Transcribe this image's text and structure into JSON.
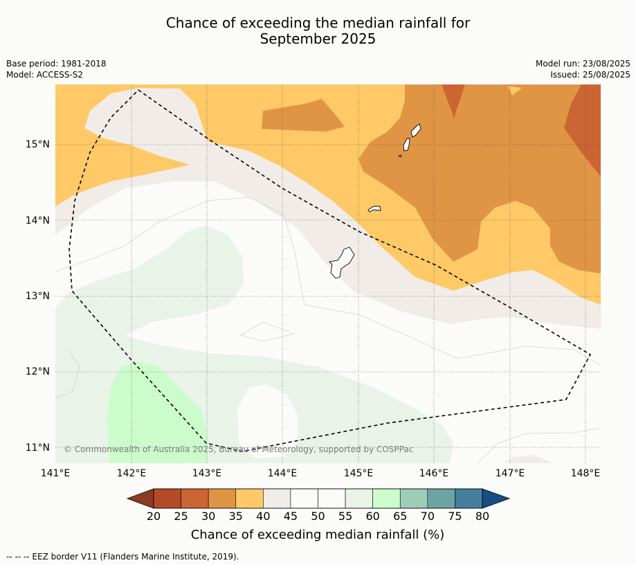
{
  "header": {
    "title_line1": "Chance of exceeding the median rainfall for",
    "title_line2": "September 2025"
  },
  "meta": {
    "base_period": "Base period: 1981-2018",
    "model": "Model: ACCESS-S2",
    "model_run": "Model run: 23/08/2025",
    "issued": "Issued: 25/08/2025"
  },
  "map": {
    "copyright": "© Commonwealth of Australia 2025, Bureau of Meteorology, supported by COSPPac",
    "lon_ticks": [
      "141°E",
      "142°E",
      "143°E",
      "144°E",
      "145°E",
      "146°E",
      "147°E",
      "148°E"
    ],
    "lat_ticks": [
      "15°N",
      "14°N",
      "13°N",
      "12°N",
      "11°N"
    ],
    "extent": {
      "lon": [
        141.0,
        148.2
      ],
      "lat": [
        10.8,
        15.8
      ]
    },
    "border_name": "EEZ border V11"
  },
  "colorbar": {
    "ticks": [
      "20",
      "25",
      "30",
      "35",
      "40",
      "45",
      "50",
      "55",
      "60",
      "65",
      "70",
      "75",
      "80"
    ],
    "colors": [
      "#b24b26",
      "#cb6533",
      "#e09545",
      "#fec966",
      "#f1ece7",
      "#fbfcfa",
      "#fbfcfa",
      "#e9f3e8",
      "#cdfccc",
      "#9dcdb7",
      "#6da4a3",
      "#44809e"
    ],
    "under_color": "#8c3b22",
    "over_color": "#174d85",
    "label": "Chance of exceeding median rainfall (%)"
  },
  "footnote": "--  --  -- EEZ border V11 (Flanders Marine Institute, 2019)."
}
